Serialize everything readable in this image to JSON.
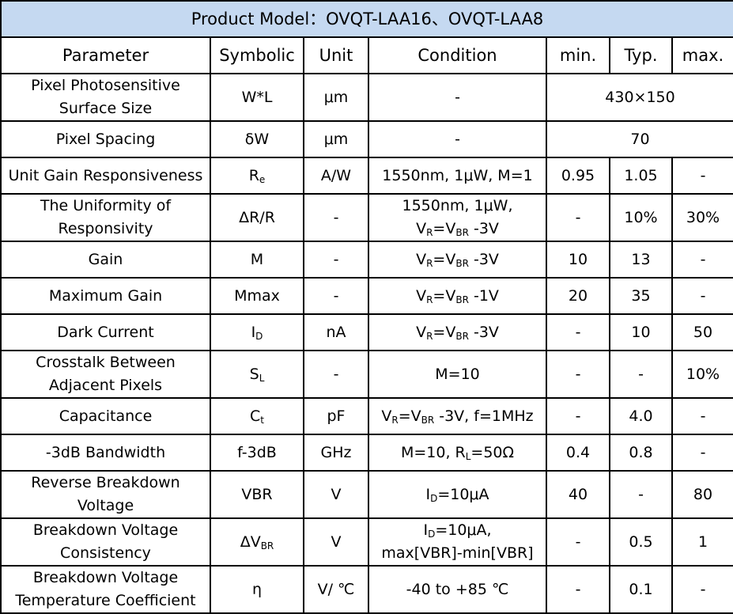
{
  "title": "Product Model：OVQT-LAA16、OVQT-LAA8",
  "headers": [
    "Parameter",
    "Symbolic",
    "Unit",
    "Condition",
    "min.",
    "Typ.",
    "max."
  ],
  "rows": [
    {
      "param": [
        "Pixel Photosensitive",
        "Surface Size"
      ],
      "symbol": [
        [
          "W*L",
          ""
        ]
      ],
      "unit": "μm",
      "condition": [
        [
          "-"
        ]
      ],
      "merged": "430×150"
    },
    {
      "param": [
        "Pixel Spacing"
      ],
      "symbol": [
        [
          "δW",
          ""
        ]
      ],
      "unit": "μm",
      "condition": [
        [
          "-"
        ]
      ],
      "merged": "70"
    },
    {
      "param": [
        "Unit Gain Responsiveness"
      ],
      "symbol": [
        [
          "R",
          "e"
        ]
      ],
      "unit": "A/W",
      "condition": [
        [
          "1550nm, 1μW, M=1"
        ]
      ],
      "min": "0.95",
      "typ": "1.05",
      "max": "-"
    },
    {
      "param": [
        "The Uniformity of",
        "Responsivity"
      ],
      "symbol": [
        [
          "ΔR/R",
          ""
        ]
      ],
      "unit": "-",
      "condition": [
        [
          "1550nm, 1μW,"
        ],
        [
          "V",
          "R",
          "=V",
          "BR",
          " -3V"
        ]
      ],
      "min": "-",
      "typ": "10%",
      "max": "30%"
    },
    {
      "param": [
        "Gain"
      ],
      "symbol": [
        [
          "M",
          ""
        ]
      ],
      "unit": "-",
      "condition": [
        [
          "V",
          "R",
          "=V",
          "BR",
          " -3V"
        ]
      ],
      "min": "10",
      "typ": "13",
      "max": "-"
    },
    {
      "param": [
        "Maximum Gain"
      ],
      "symbol": [
        [
          "Mmax",
          ""
        ]
      ],
      "unit": "-",
      "condition": [
        [
          "V",
          "R",
          "=V",
          "BR",
          " -1V"
        ]
      ],
      "min": "20",
      "typ": "35",
      "max": "-"
    },
    {
      "param": [
        "Dark Current"
      ],
      "symbol": [
        [
          "I",
          "D"
        ]
      ],
      "unit": "nA",
      "condition": [
        [
          "V",
          "R",
          "=V",
          "BR",
          " -3V"
        ]
      ],
      "min": "-",
      "typ": "10",
      "max": "50"
    },
    {
      "param": [
        "Crosstalk Between",
        "Adjacent Pixels"
      ],
      "symbol": [
        [
          "S",
          "L"
        ]
      ],
      "unit": "-",
      "condition": [
        [
          "M=10"
        ]
      ],
      "min": "-",
      "typ": "-",
      "max": "10%"
    },
    {
      "param": [
        "Capacitance"
      ],
      "symbol": [
        [
          "C",
          "t"
        ]
      ],
      "unit": "pF",
      "condition": [
        [
          "V",
          "R",
          "=V",
          "BR",
          " -3V, f=1MHz"
        ]
      ],
      "min": "-",
      "typ": "4.0",
      "max": "-"
    },
    {
      "param": [
        "-3dB Bandwidth"
      ],
      "symbol": [
        [
          "f-3dB",
          ""
        ]
      ],
      "unit": "GHz",
      "condition": [
        [
          "M=10, R",
          "L",
          "=50Ω"
        ]
      ],
      "min": "0.4",
      "typ": "0.8",
      "max": "-"
    },
    {
      "param": [
        "Reverse Breakdown",
        "Voltage"
      ],
      "symbol": [
        [
          "VBR",
          ""
        ]
      ],
      "unit": "V",
      "condition": [
        [
          "I",
          "D",
          "=10μA"
        ]
      ],
      "min": "40",
      "typ": "-",
      "max": "80"
    },
    {
      "param": [
        "Breakdown Voltage",
        "Consistency"
      ],
      "symbol": [
        [
          "ΔV",
          "BR"
        ]
      ],
      "unit": "V",
      "condition": [
        [
          "I",
          "D",
          "=10μA,"
        ],
        [
          "max[VBR]-min[VBR]"
        ]
      ],
      "min": "-",
      "typ": "0.5",
      "max": "1"
    },
    {
      "param": [
        "Breakdown Voltage",
        "Temperature Coefficient"
      ],
      "symbol": [
        [
          "η",
          ""
        ]
      ],
      "unit": "V/ ℃",
      "condition": [
        [
          "-40 to +85 ℃"
        ]
      ],
      "min": "-",
      "typ": "0.1",
      "max": "-"
    }
  ]
}
